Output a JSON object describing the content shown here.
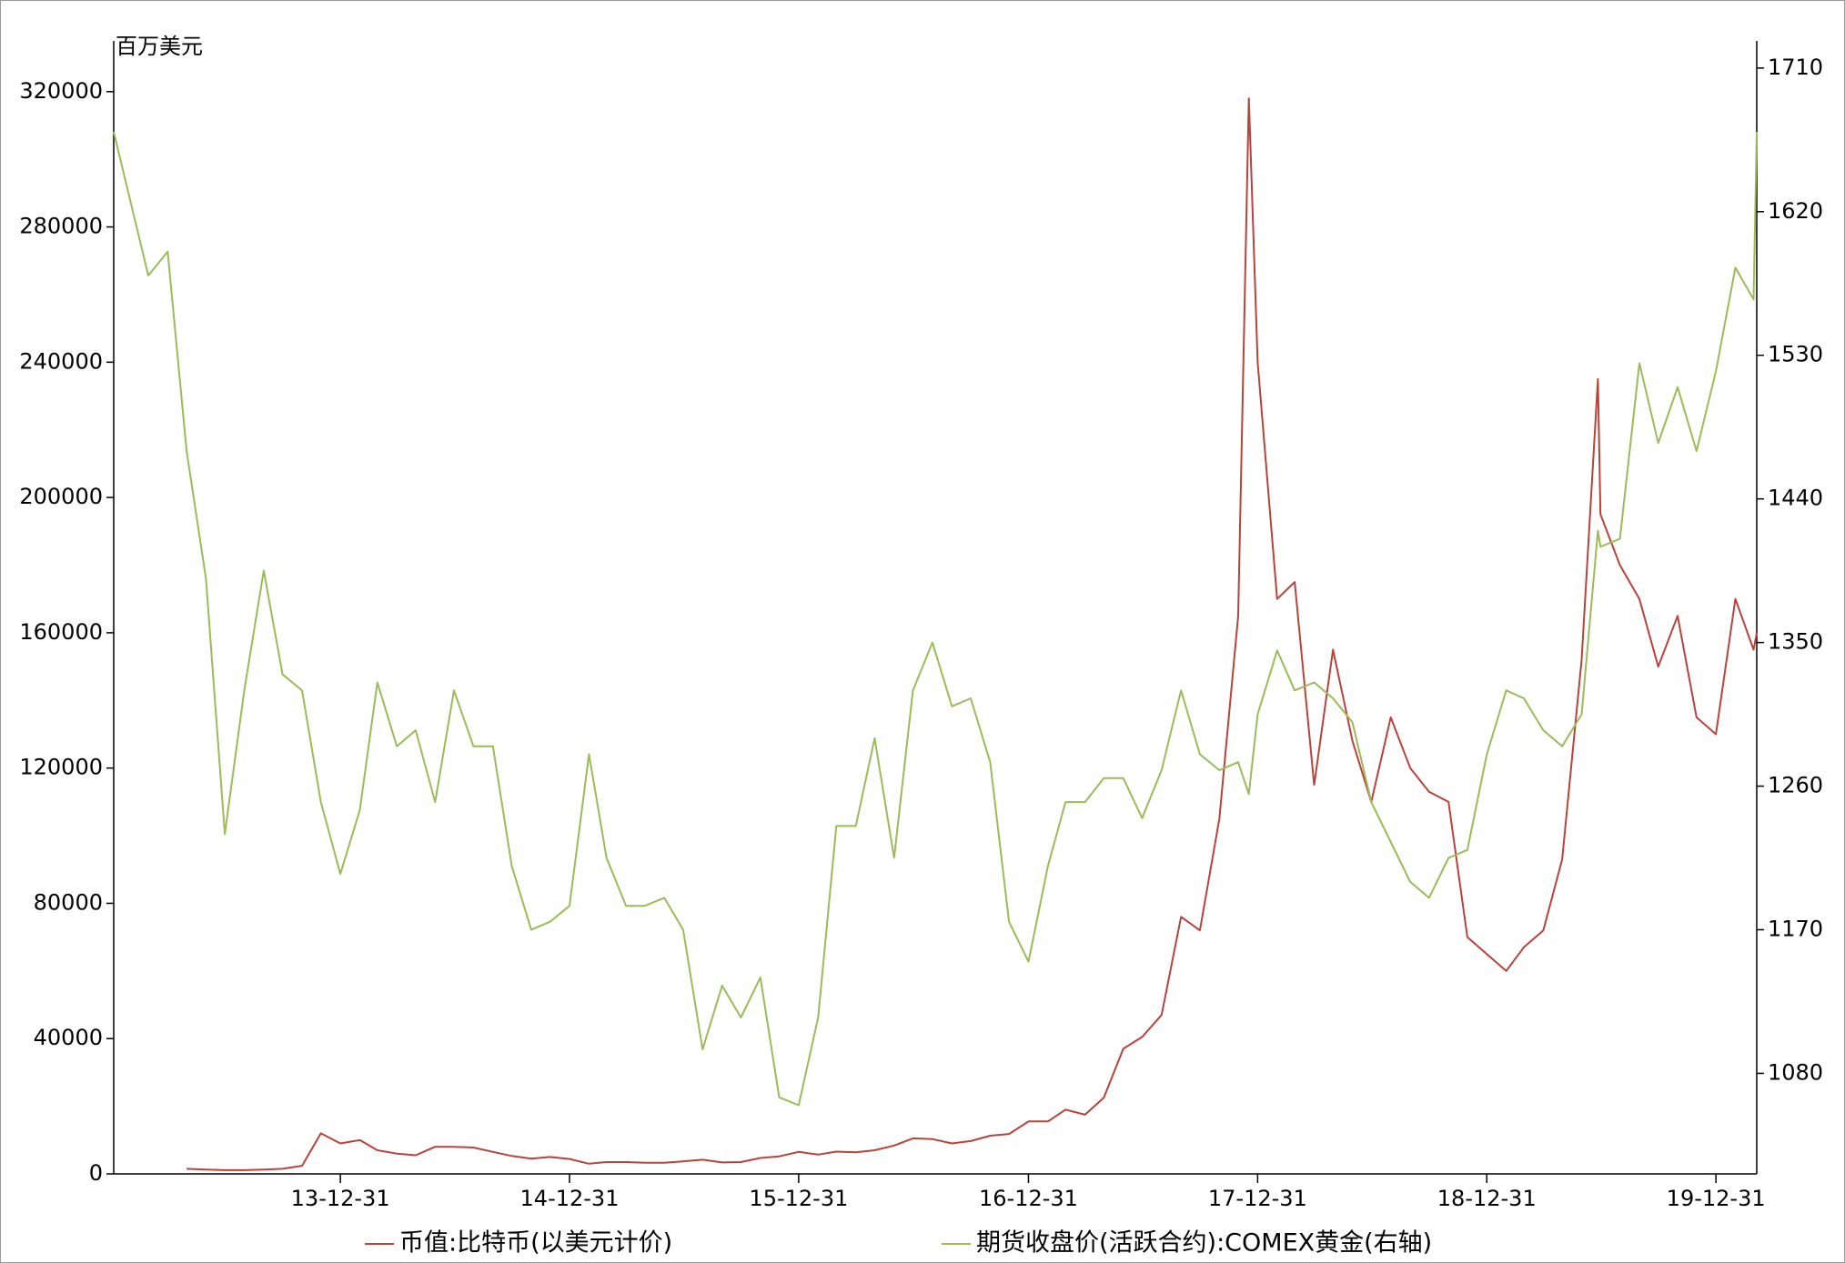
{
  "chart_data": {
    "type": "line",
    "ylabel": "百万美元",
    "x": [
      "13-01-04",
      "13-02-28",
      "13-03-31",
      "13-04-30",
      "13-05-31",
      "13-06-30",
      "13-07-31",
      "13-08-31",
      "13-09-30",
      "13-10-31",
      "13-11-30",
      "13-12-31",
      "14-01-31",
      "14-02-28",
      "14-03-31",
      "14-04-30",
      "14-05-31",
      "14-06-30",
      "14-07-31",
      "14-08-31",
      "14-09-30",
      "14-10-31",
      "14-11-30",
      "14-12-31",
      "15-01-31",
      "15-02-28",
      "15-03-31",
      "15-04-30",
      "15-05-31",
      "15-06-30",
      "15-07-31",
      "15-08-31",
      "15-09-30",
      "15-10-31",
      "15-11-30",
      "15-12-31",
      "16-01-31",
      "16-02-29",
      "16-03-31",
      "16-04-30",
      "16-05-31",
      "16-06-30",
      "16-07-31",
      "16-08-31",
      "16-09-30",
      "16-10-31",
      "16-11-30",
      "16-12-31",
      "17-01-31",
      "17-02-28",
      "17-03-31",
      "17-04-30",
      "17-05-31",
      "17-06-30",
      "17-07-31",
      "17-08-31",
      "17-09-30",
      "17-10-31",
      "17-11-30",
      "17-12-17",
      "17-12-31",
      "18-01-31",
      "18-02-28",
      "18-03-31",
      "18-04-30",
      "18-05-31",
      "18-06-30",
      "18-07-31",
      "18-08-31",
      "18-09-30",
      "18-10-31",
      "18-11-30",
      "18-12-31",
      "19-01-31",
      "19-02-28",
      "19-03-31",
      "19-04-30",
      "19-05-31",
      "19-06-26",
      "19-06-30",
      "19-07-31",
      "19-08-31",
      "19-09-30",
      "19-10-31",
      "19-11-30",
      "19-12-31",
      "20-01-31",
      "20-02-29",
      "20-03-05"
    ],
    "xlim": [
      "13-01-04",
      "20-03-05"
    ],
    "xticks": [
      "13-12-31",
      "14-12-31",
      "15-12-31",
      "16-12-31",
      "17-12-31",
      "18-12-31",
      "19-12-31"
    ],
    "ylim": [
      0,
      335000
    ],
    "yticks": [
      0,
      40000,
      80000,
      120000,
      160000,
      200000,
      240000,
      280000,
      320000
    ],
    "y2lim": [
      1017,
      1727
    ],
    "y2ticks": [
      1080,
      1170,
      1260,
      1350,
      1440,
      1530,
      1620,
      1710
    ],
    "series": [
      {
        "name": "币值:比特币(以美元计价)",
        "color": "#b8423c",
        "values": [
          null,
          null,
          null,
          1500,
          1300,
          1100,
          1100,
          1300,
          1500,
          2400,
          12000,
          9000,
          10000,
          7000,
          6000,
          5500,
          8000,
          8000,
          7800,
          6500,
          5300,
          4500,
          5000,
          4400,
          3000,
          3500,
          3500,
          3300,
          3300,
          3700,
          4200,
          3400,
          3500,
          4700,
          5200,
          6500,
          5700,
          6600,
          6400,
          7000,
          8400,
          10500,
          10300,
          9000,
          9700,
          11300,
          11800,
          15500,
          15500,
          19000,
          17500,
          22500,
          37000,
          40500,
          47000,
          76000,
          72000,
          105000,
          165000,
          318000,
          240000,
          170000,
          175000,
          115000,
          155000,
          128000,
          110000,
          135000,
          120000,
          113000,
          110000,
          70000,
          65000,
          60000,
          67000,
          72000,
          93000,
          152000,
          235000,
          195000,
          180000,
          170000,
          150000,
          165000,
          135000,
          130000,
          170000,
          155000,
          160000
        ]
      },
      {
        "name": "期货收盘价(活跃合约):COMEX黄金(右轴)",
        "color": "#9bbb59",
        "axis": "y2",
        "values": [
          1670,
          1580,
          1595,
          1470,
          1390,
          1230,
          1320,
          1395,
          1330,
          1320,
          1250,
          1205,
          1245,
          1325,
          1285,
          1295,
          1250,
          1320,
          1285,
          1285,
          1210,
          1170,
          1175,
          1185,
          1280,
          1215,
          1185,
          1185,
          1190,
          1170,
          1095,
          1135,
          1115,
          1140,
          1065,
          1060,
          1115,
          1235,
          1235,
          1290,
          1215,
          1320,
          1350,
          1310,
          1315,
          1275,
          1175,
          1150,
          1210,
          1250,
          1250,
          1265,
          1265,
          1240,
          1270,
          1320,
          1280,
          1270,
          1275,
          1255,
          1305,
          1345,
          1320,
          1325,
          1315,
          1300,
          1250,
          1225,
          1200,
          1190,
          1215,
          1220,
          1280,
          1320,
          1315,
          1295,
          1285,
          1305,
          1420,
          1410,
          1415,
          1525,
          1475,
          1510,
          1470,
          1520,
          1585,
          1565,
          1670
        ]
      }
    ]
  }
}
